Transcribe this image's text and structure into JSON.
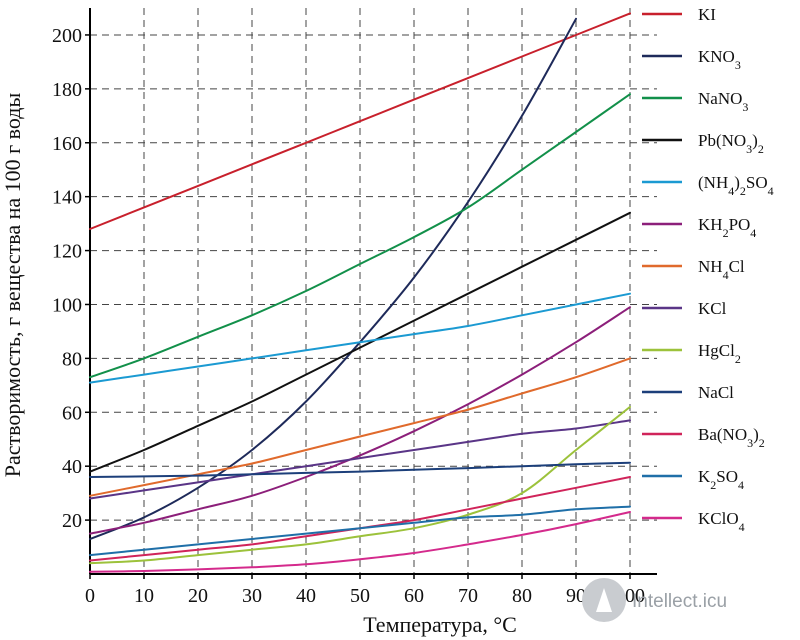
{
  "chart_data": {
    "type": "line",
    "title": "",
    "xlabel": "Температура, °C",
    "ylabel": "Растворимость, г вещества на 100 г воды",
    "xlim": [
      0,
      105
    ],
    "ylim": [
      0,
      210
    ],
    "x_ticks": [
      "0",
      "10",
      "20",
      "30",
      "40",
      "50",
      "60",
      "70",
      "80",
      "90",
      "100"
    ],
    "y_ticks": [
      "20",
      "40",
      "60",
      "80",
      "100",
      "120",
      "140",
      "160",
      "180",
      "200"
    ],
    "grid": true,
    "legend_position": "right",
    "x": [
      0,
      10,
      20,
      30,
      40,
      50,
      60,
      70,
      80,
      90,
      100
    ],
    "series": [
      {
        "name": "KI",
        "label_main": "KI",
        "label_sub": "",
        "label_tail": "",
        "color": "#c8202c",
        "values": [
          128,
          136,
          144,
          152,
          160,
          168,
          176,
          184,
          192,
          200,
          208
        ]
      },
      {
        "name": "KNO3",
        "label_main": "KNO",
        "label_sub": "3",
        "label_tail": "",
        "color": "#1e2a5a",
        "values": [
          13,
          21,
          32,
          46,
          64,
          86,
          110,
          138,
          170,
          206,
          null
        ]
      },
      {
        "name": "NaNO3",
        "label_main": "NaNO",
        "label_sub": "3",
        "label_tail": "",
        "color": "#12904a",
        "values": [
          73,
          80,
          88,
          96,
          105,
          115,
          125,
          136,
          150,
          164,
          178
        ]
      },
      {
        "name": "Pb(NO3)2",
        "label_main": "Pb(NO",
        "label_sub": "3",
        "label_tail": ")",
        "label_sub2": "2",
        "color": "#111111",
        "values": [
          38,
          46,
          55,
          64,
          74,
          84,
          94,
          104,
          114,
          124,
          134
        ]
      },
      {
        "name": "(NH4)2SO4",
        "label_main": "(NH",
        "label_sub": "4",
        "label_tail": ")",
        "label_sub2": "2",
        "label_tail2": "SO",
        "label_sub3": "4",
        "color": "#1b9ad2",
        "values": [
          71,
          74,
          77,
          80,
          83,
          86,
          89,
          92,
          96,
          100,
          104
        ]
      },
      {
        "name": "KH2PO4",
        "label_main": "KH",
        "label_sub": "2",
        "label_tail": "PO",
        "label_sub2": "4",
        "color": "#8c1f7a",
        "values": [
          15,
          19,
          24,
          29,
          36,
          44,
          53,
          63,
          74,
          86,
          99
        ]
      },
      {
        "name": "NH4Cl",
        "label_main": "NH",
        "label_sub": "4",
        "label_tail": "Cl",
        "color": "#e06a2c",
        "values": [
          29,
          33,
          37,
          41,
          46,
          51,
          56,
          61,
          67,
          73,
          80
        ]
      },
      {
        "name": "KCl",
        "label_main": "KCl",
        "label_sub": "",
        "label_tail": "",
        "color": "#5a3587",
        "values": [
          28,
          31,
          34,
          37,
          40,
          43,
          46,
          49,
          52,
          54,
          57
        ]
      },
      {
        "name": "HgCl2",
        "label_main": "HgCl",
        "label_sub": "2",
        "label_tail": "",
        "color": "#9cc23b",
        "values": [
          4,
          5,
          7,
          9,
          11,
          14,
          17,
          22,
          30,
          46,
          62
        ]
      },
      {
        "name": "NaCl",
        "label_main": "NaCl",
        "label_sub": "",
        "label_tail": "",
        "color": "#1c3f7a",
        "values": [
          36,
          36.2,
          36.5,
          37,
          37.5,
          38,
          38.7,
          39.3,
          40,
          40.7,
          41.3
        ]
      },
      {
        "name": "Ba(NO3)2",
        "label_main": "Ba(NO",
        "label_sub": "3",
        "label_tail": ")",
        "label_sub2": "2",
        "color": "#d0245a",
        "values": [
          5,
          7,
          9,
          11,
          14,
          17,
          20,
          24,
          28,
          32,
          36
        ]
      },
      {
        "name": "K2SO4",
        "label_main": "K",
        "label_sub": "2",
        "label_tail": "SO",
        "label_sub2": "4",
        "color": "#1f6fa8",
        "values": [
          7,
          9,
          11,
          13,
          15,
          17,
          19,
          21,
          22,
          24,
          25
        ]
      },
      {
        "name": "KClO4",
        "label_main": "KClO",
        "label_sub": "4",
        "label_tail": "",
        "color": "#d42a8c",
        "values": [
          0.8,
          1.1,
          1.7,
          2.5,
          3.6,
          5.5,
          7.8,
          11,
          14.5,
          18.5,
          23
        ]
      }
    ]
  },
  "watermark": {
    "text": "Intellect.icu"
  }
}
